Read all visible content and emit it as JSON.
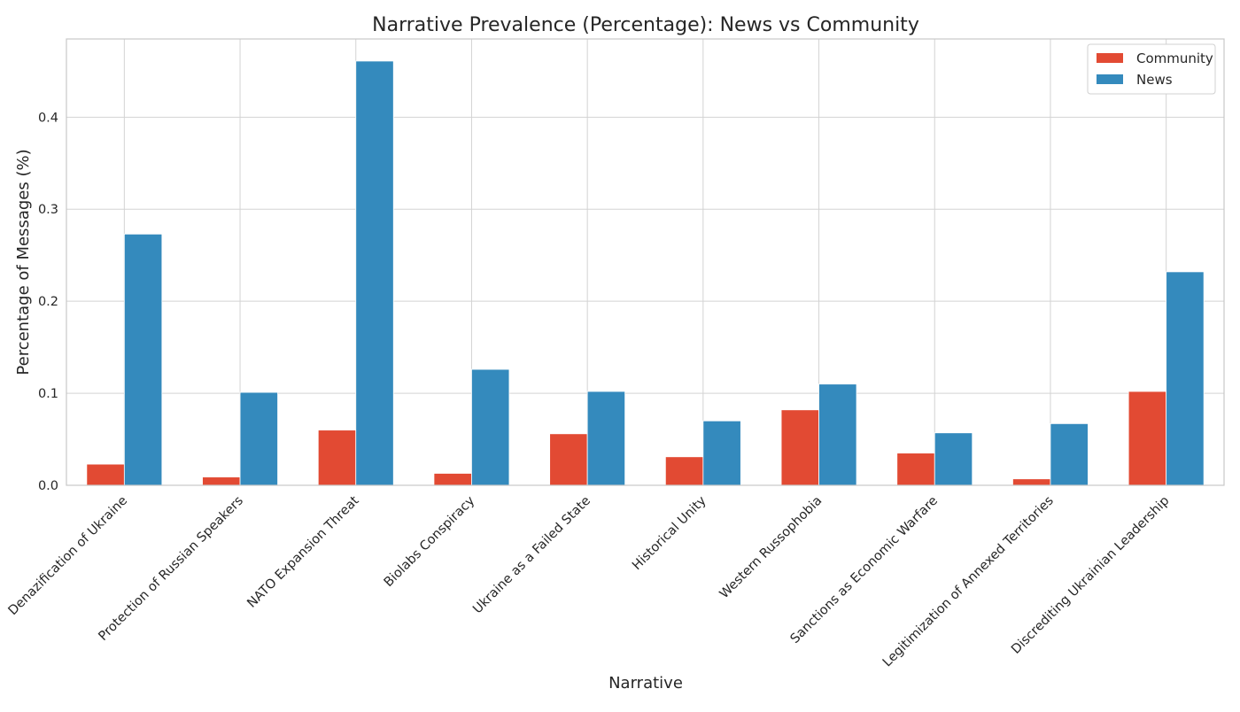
{
  "chart_data": {
    "type": "bar",
    "title": "Narrative Prevalence (Percentage): News vs Community",
    "xlabel": "Narrative",
    "ylabel": "Percentage of Messages (%)",
    "categories": [
      "Denazification of Ukraine",
      "Protection of Russian Speakers",
      "NATO Expansion Threat",
      "Biolabs Conspiracy",
      "Ukraine as a Failed State",
      "Historical Unity",
      "Western Russophobia",
      "Sanctions as Economic Warfare",
      "Legitimization of Annexed Territories",
      "Discrediting Ukrainian Leadership"
    ],
    "series": [
      {
        "name": "Community",
        "color": "#e24a33",
        "values": [
          0.023,
          0.009,
          0.06,
          0.013,
          0.056,
          0.031,
          0.082,
          0.035,
          0.007,
          0.102
        ]
      },
      {
        "name": "News",
        "color": "#348abd",
        "values": [
          0.273,
          0.101,
          0.461,
          0.126,
          0.102,
          0.07,
          0.11,
          0.057,
          0.067,
          0.232
        ]
      }
    ],
    "ylim": [
      0,
      0.485
    ],
    "yticks": [
      0.0,
      0.1,
      0.2,
      0.3,
      0.4
    ],
    "ytick_labels": [
      "0.0",
      "0.1",
      "0.2",
      "0.3",
      "0.4"
    ],
    "grid": true,
    "legend_position": "top-right"
  }
}
